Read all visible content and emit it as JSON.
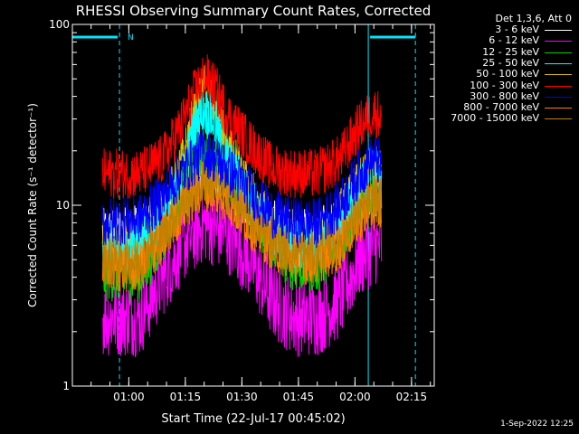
{
  "title": "RHESSI Observing Summary Count Rates, Corrected",
  "colors": {
    "background": "#000000",
    "axis": "#ffffff",
    "flag": "#00e5ff",
    "series": [
      "#ffffff",
      "#ff00ff",
      "#00d000",
      "#00ffff",
      "#e0c000",
      "#ff0000",
      "#0000ff",
      "#ff8000",
      "#c08000"
    ]
  },
  "legend": {
    "header": "Det 1,3,6, Att 0",
    "placement": "top-right outside"
  },
  "flag_label": "N",
  "footer_date": "1-Sep-2022 12:25",
  "chart_data": {
    "type": "line",
    "title": "RHESSI Observing Summary Count Rates, Corrected",
    "xlabel": "Start Time (22-Jul-17 00:45:02)",
    "ylabel": "Corrected Count Rate (s⁻¹ detector⁻¹)",
    "x_unit": "minutes after 00:45:02",
    "xlim": [
      0,
      96
    ],
    "ylim": [
      1,
      100
    ],
    "y_scale": "log",
    "x_tick_labels": [
      "01:00",
      "01:15",
      "01:30",
      "01:45",
      "02:00",
      "02:15"
    ],
    "x_tick_values": [
      14.97,
      29.97,
      44.97,
      59.97,
      74.97,
      89.97
    ],
    "y_tick_labels": [
      "1",
      "10",
      "100"
    ],
    "y_tick_values": [
      1,
      10,
      100
    ],
    "data_window": [
      8,
      82
    ],
    "grid": false,
    "annotations": {
      "night_bars": [
        [
          0,
          12
        ],
        [
          79,
          91
        ]
      ],
      "dashed_markers": [
        12.5,
        91
      ],
      "solid_markers": [
        0,
        78.5
      ]
    },
    "series": [
      {
        "name": "3 - 6 keV",
        "x": [
          8,
          18,
          24,
          29,
          35,
          41,
          47,
          53,
          59,
          65,
          71,
          76,
          80,
          82
        ],
        "values": [
          7,
          7.5,
          9,
          11,
          15,
          13,
          10,
          8,
          7,
          7,
          8,
          11,
          12,
          11
        ]
      },
      {
        "name": "6 - 12 keV",
        "x": [
          8,
          18,
          24,
          29,
          35,
          41,
          47,
          53,
          59,
          65,
          71,
          76,
          80,
          82
        ],
        "values": [
          2.4,
          2.4,
          4,
          6,
          8,
          7,
          5,
          3,
          2.4,
          2.4,
          3,
          5,
          6,
          6
        ]
      },
      {
        "name": "12 - 25 keV",
        "x": [
          8,
          18,
          24,
          29,
          35,
          41,
          47,
          53,
          59,
          65,
          71,
          76,
          80,
          82
        ],
        "values": [
          4,
          4,
          6.5,
          12,
          20,
          15,
          10,
          6,
          4.5,
          4.5,
          6,
          10,
          13,
          12
        ]
      },
      {
        "name": "25 - 50 keV",
        "x": [
          8,
          18,
          24,
          29,
          32,
          35,
          38,
          41,
          47,
          53,
          59,
          65,
          71,
          76,
          80,
          82
        ],
        "values": [
          6,
          6,
          8,
          14,
          25,
          34,
          28,
          18,
          11,
          7,
          6,
          6,
          8,
          12,
          15,
          14
        ]
      },
      {
        "name": "50 - 100 keV",
        "x": [
          8,
          18,
          24,
          29,
          32,
          35,
          38,
          41,
          47,
          53,
          59,
          65,
          71,
          76,
          80,
          82
        ],
        "values": [
          6,
          6,
          9,
          17,
          30,
          44,
          34,
          21,
          12,
          8,
          6,
          6,
          9,
          13,
          16,
          15
        ]
      },
      {
        "name": "100 - 300 keV",
        "x": [
          8,
          18,
          24,
          29,
          32,
          35,
          38,
          41,
          47,
          53,
          59,
          65,
          71,
          76,
          80,
          82
        ],
        "values": [
          15,
          15,
          18,
          28,
          40,
          52,
          44,
          32,
          22,
          16,
          15,
          15,
          18,
          27,
          33,
          31
        ]
      },
      {
        "name": "300 - 800 keV",
        "x": [
          8,
          18,
          24,
          29,
          35,
          41,
          47,
          53,
          59,
          65,
          71,
          76,
          80,
          82
        ],
        "values": [
          8,
          8.5,
          11,
          15,
          20,
          16,
          12,
          9,
          8,
          8,
          10,
          15,
          18,
          17
        ]
      },
      {
        "name": "800 - 7000 keV",
        "x": [
          8,
          18,
          24,
          29,
          35,
          41,
          47,
          53,
          59,
          65,
          71,
          76,
          80,
          82
        ],
        "values": [
          4.5,
          4.5,
          6.5,
          9.5,
          13,
          11,
          8,
          6,
          5,
          5,
          6,
          8.5,
          10,
          9.5
        ]
      },
      {
        "name": "7000 - 15000 keV",
        "x": [
          8,
          18,
          24,
          29,
          35,
          41,
          47,
          53,
          59,
          65,
          71,
          76,
          80,
          82
        ],
        "values": [
          5,
          5,
          7,
          10,
          14,
          12,
          8.5,
          6.5,
          5.5,
          5.5,
          6.5,
          9,
          11,
          10.5
        ]
      }
    ]
  }
}
